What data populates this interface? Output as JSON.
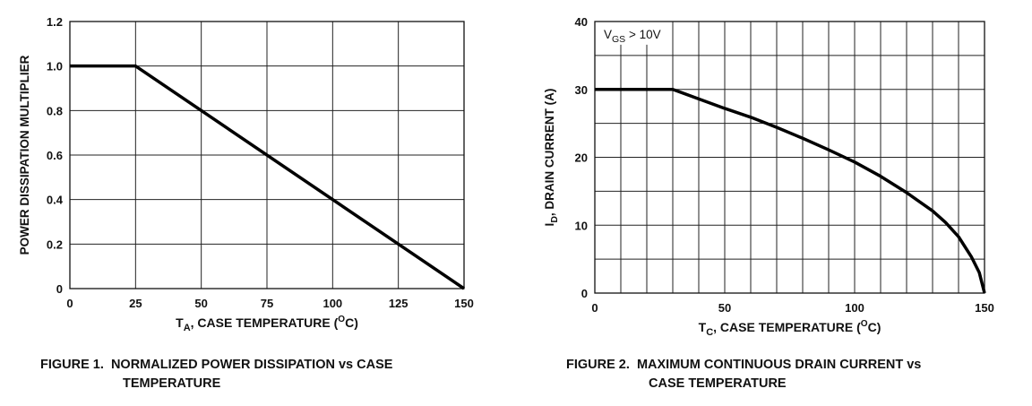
{
  "chart_data": [
    {
      "type": "line",
      "title": "",
      "caption_line1": "FIGURE 1.  NORMALIZED POWER DISSIPATION vs CASE",
      "caption_line2": "TEMPERATURE",
      "xlabel_main": "T",
      "xlabel_sub": "A",
      "xlabel_rest": ", CASE TEMPERATURE (",
      "xlabel_sup": "O",
      "xlabel_end": "C)",
      "ylabel": "POWER DISSIPATION MULTIPLIER",
      "xlim": [
        0,
        150
      ],
      "ylim": [
        0,
        1.2
      ],
      "xticks": [
        0,
        25,
        50,
        75,
        100,
        125,
        150
      ],
      "xtick_labels": [
        "0",
        "25",
        "50",
        "75",
        "100",
        "125",
        "150"
      ],
      "yticks": [
        0,
        0.2,
        0.4,
        0.6,
        0.8,
        1.0,
        1.2
      ],
      "ytick_labels": [
        "0",
        "0.2",
        "0.4",
        "0.6",
        "0.8",
        "1.0",
        "1.2"
      ],
      "grid": true,
      "series": [
        {
          "name": "multiplier",
          "x": [
            0,
            25,
            150
          ],
          "y": [
            1.0,
            1.0,
            0
          ]
        }
      ]
    },
    {
      "type": "line",
      "title": "",
      "caption_line1": "FIGURE 2.  MAXIMUM CONTINUOUS DRAIN CURRENT vs",
      "caption_line2": "CASE TEMPERATURE",
      "xlabel_main": "T",
      "xlabel_sub": "C",
      "xlabel_rest": ", CASE TEMPERATURE (",
      "xlabel_sup": "O",
      "xlabel_end": "C)",
      "ylabel_main": "I",
      "ylabel_sub": "D",
      "ylabel_rest": ", DRAIN CURRENT (A)",
      "annotation_main": "V",
      "annotation_sub": "GS",
      "annotation_rest": " > 10V",
      "xlim": [
        0,
        150
      ],
      "ylim": [
        0,
        40
      ],
      "xticks": [
        0,
        50,
        100,
        150
      ],
      "xtick_labels": [
        "0",
        "50",
        "100",
        "150"
      ],
      "yticks": [
        0,
        10,
        20,
        30,
        40
      ],
      "ytick_labels": [
        "0",
        "10",
        "20",
        "30",
        "40"
      ],
      "grid_x_step": 10,
      "grid_y_step": 5,
      "grid": true,
      "series": [
        {
          "name": "I_D",
          "x": [
            0,
            30,
            40,
            50,
            60,
            70,
            80,
            90,
            100,
            110,
            120,
            130,
            135,
            140,
            145,
            148,
            150
          ],
          "y": [
            30,
            30,
            28.6,
            27.2,
            25.9,
            24.4,
            22.8,
            21.1,
            19.3,
            17.2,
            14.8,
            12.1,
            10.4,
            8.3,
            5.3,
            3.0,
            0
          ]
        }
      ]
    }
  ]
}
